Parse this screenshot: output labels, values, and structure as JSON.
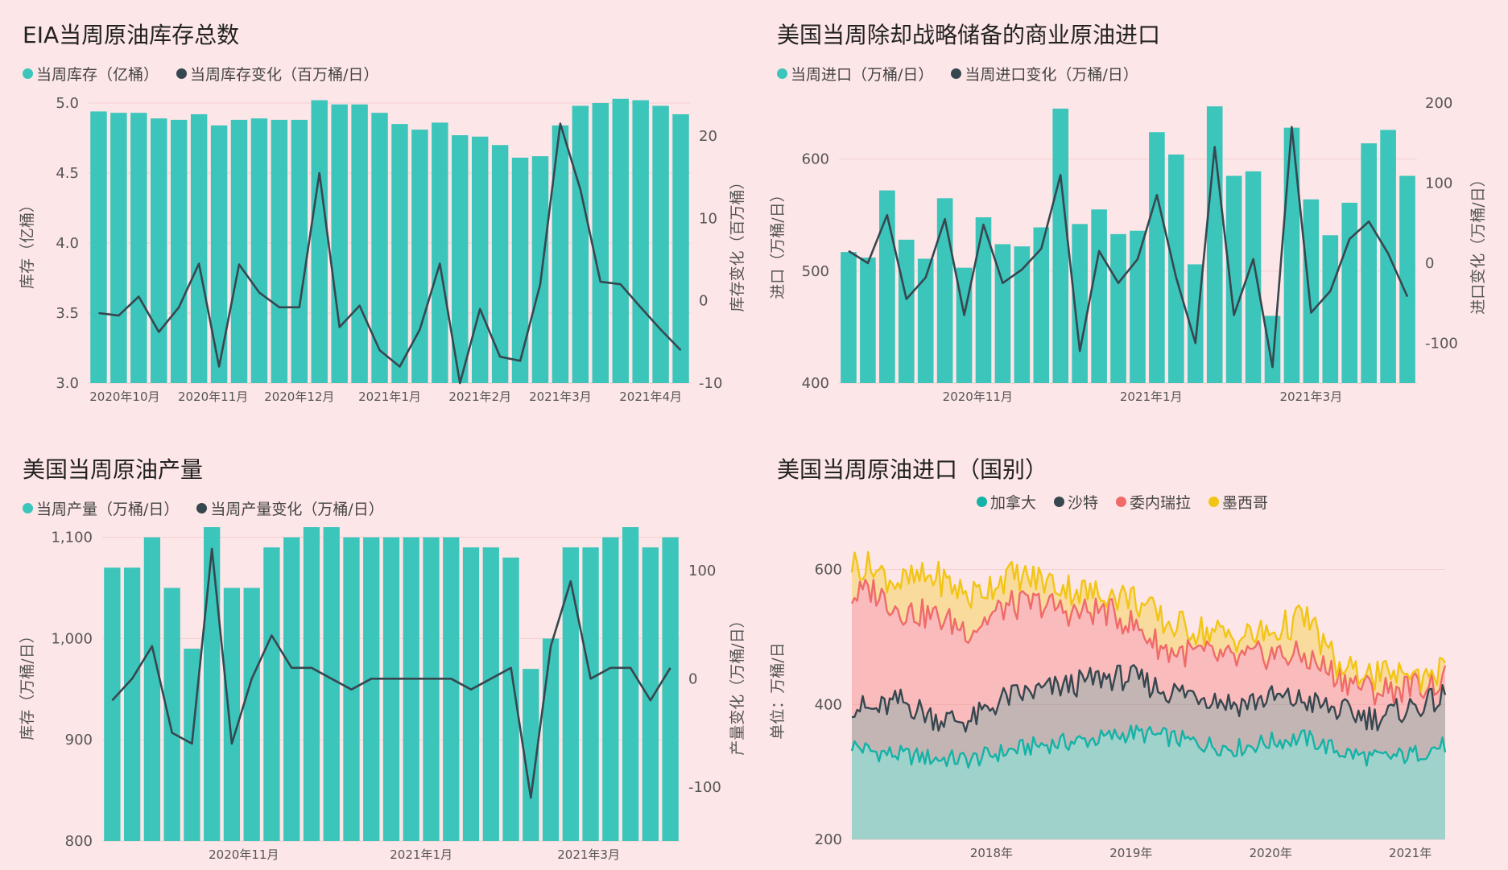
{
  "charts": [
    {
      "id": "p1",
      "title": "EIA当周原油库存总数",
      "legend": [
        {
          "label": "当周库存（亿桶）",
          "color": "#3cc5bb"
        },
        {
          "label": "当周库存变化（百万桶/日）",
          "color": "#37474f"
        }
      ]
    },
    {
      "id": "p2",
      "title": "美国当周除却战略储备的商业原油进口",
      "legend": [
        {
          "label": "当周进口（万桶/日）",
          "color": "#3cc5bb"
        },
        {
          "label": "当周进口变化（万桶/日）",
          "color": "#37474f"
        }
      ]
    },
    {
      "id": "p3",
      "title": "美国当周原油产量",
      "legend": [
        {
          "label": "当周产量（万桶/日）",
          "color": "#3cc5bb"
        },
        {
          "label": "当周产量变化（万桶/日）",
          "color": "#37474f"
        }
      ]
    },
    {
      "id": "p4",
      "title": "美国当周原油进口（国别）",
      "legend": [
        {
          "label": "加拿大",
          "color": "#14b3a6"
        },
        {
          "label": "沙特",
          "color": "#37474f"
        },
        {
          "label": "委内瑞拉",
          "color": "#f06a6a"
        },
        {
          "label": "墨西哥",
          "color": "#f2c515"
        }
      ]
    }
  ],
  "chart_data": [
    {
      "type": "bar",
      "id": "p1",
      "x_ticks": [
        "2020年10月",
        "2020年11月",
        "2020年12月",
        "2021年1月",
        "2021年2月",
        "2021年3月",
        "2021年4月"
      ],
      "x_tick_index": [
        1.3,
        5.7,
        10,
        14.5,
        19,
        23,
        27.5
      ],
      "ylabel": "库存（亿桶）",
      "y2label": "库存变化（百万桶）",
      "ylim": [
        3.0,
        5.0
      ],
      "y_ticks": [
        "3.0",
        "3.5",
        "4.0",
        "4.5",
        "5.0"
      ],
      "y2lim": [
        -10,
        24
      ],
      "y2_ticks": [
        "-10",
        "0",
        "10",
        "20"
      ],
      "series": [
        {
          "name": "当周库存",
          "kind": "bar",
          "values": [
            4.94,
            4.93,
            4.93,
            4.89,
            4.88,
            4.92,
            4.84,
            4.88,
            4.89,
            4.88,
            4.88,
            5.02,
            4.99,
            4.99,
            4.93,
            4.85,
            4.81,
            4.86,
            4.77,
            4.76,
            4.7,
            4.61,
            4.62,
            4.84,
            4.98,
            5.0,
            5.03,
            5.02,
            4.98,
            4.92
          ]
        },
        {
          "name": "当周库存变化",
          "kind": "line",
          "values": [
            -1.5,
            -1.8,
            0.5,
            -3.8,
            -0.8,
            4.5,
            -8,
            4.4,
            1,
            -0.8,
            -0.8,
            15.5,
            -3.2,
            -0.6,
            -6,
            -8,
            -3.5,
            4.5,
            -10,
            -1,
            -6.8,
            -7.3,
            2,
            21.5,
            13.5,
            2.3,
            2,
            -0.8,
            -3.5,
            -6
          ]
        }
      ]
    },
    {
      "type": "bar",
      "id": "p2",
      "x_ticks": [
        "2020年11月",
        "2021年1月",
        "2021年3月"
      ],
      "x_tick_index": [
        6.7,
        15.7,
        24
      ],
      "ylabel": "进口（万桶/日）",
      "y2label": "进口变化（万桶/日）",
      "ylim": [
        400,
        650
      ],
      "y_ticks": [
        "400",
        "500",
        "600"
      ],
      "y2lim": [
        -150,
        200
      ],
      "y2_ticks": [
        "-100",
        "0",
        "100",
        "200"
      ],
      "series": [
        {
          "name": "当周进口",
          "kind": "bar",
          "values": [
            517,
            512,
            572,
            528,
            511,
            565,
            503,
            548,
            524,
            522,
            539,
            645,
            542,
            555,
            533,
            536,
            624,
            604,
            506,
            647,
            585,
            589,
            460,
            628,
            564,
            532,
            561,
            614,
            626,
            585
          ]
        },
        {
          "name": "当周进口变化",
          "kind": "line",
          "values": [
            15,
            0,
            60,
            -45,
            -18,
            55,
            -65,
            48,
            -25,
            -8,
            18,
            110,
            -110,
            15,
            -25,
            5,
            85,
            -18,
            -100,
            145,
            -65,
            5,
            -130,
            170,
            -62,
            -35,
            30,
            52,
            12,
            -42
          ]
        }
      ]
    },
    {
      "type": "bar",
      "id": "p3",
      "x_ticks": [
        "2020年11月",
        "2021年1月",
        "2021年3月"
      ],
      "x_tick_index": [
        6.6,
        15.5,
        23.9
      ],
      "ylabel": "库存（万桶/日）",
      "y2label": "产量变化（万桶/日）",
      "ylim": [
        800,
        1110
      ],
      "y_ticks": [
        "800",
        "900",
        "1,000",
        "1,100"
      ],
      "y2lim": [
        -150,
        140
      ],
      "y2_ticks": [
        "-100",
        "0",
        "100"
      ],
      "series": [
        {
          "name": "当周产量",
          "kind": "bar",
          "values": [
            1070,
            1070,
            1100,
            1050,
            990,
            1110,
            1050,
            1050,
            1090,
            1100,
            1110,
            1110,
            1100,
            1100,
            1100,
            1100,
            1100,
            1100,
            1090,
            1090,
            1080,
            970,
            1000,
            1090,
            1090,
            1100,
            1110,
            1090,
            1100
          ]
        },
        {
          "name": "当周产量变化",
          "kind": "line",
          "values": [
            -20,
            0,
            30,
            -50,
            -60,
            120,
            -60,
            0,
            40,
            10,
            10,
            0,
            -10,
            0,
            0,
            0,
            0,
            0,
            -10,
            0,
            10,
            -110,
            30,
            90,
            0,
            10,
            10,
            -20,
            10
          ]
        }
      ]
    },
    {
      "type": "area",
      "id": "p4",
      "x_ticks": [
        "2018年",
        "2019年",
        "2020年",
        "2021年"
      ],
      "x_tick_pos": [
        2018.0,
        2019.0,
        2020.0,
        2021.0
      ],
      "ylabel": "单位：万桶/日",
      "ylim": [
        200,
        640
      ],
      "y_ticks": [
        "200",
        "400",
        "600"
      ],
      "xlim": [
        2017.0,
        2021.25
      ],
      "x_anchor": [
        2017.0,
        2017.15,
        2017.35,
        2017.6,
        2017.85,
        2018.1,
        2018.35,
        2018.6,
        2018.8,
        2019.0,
        2019.25,
        2019.5,
        2019.75,
        2020.0,
        2020.25,
        2020.5,
        2020.75,
        2021.0,
        2021.25
      ],
      "series": [
        {
          "name": "加拿大",
          "values": [
            340,
            330,
            325,
            320,
            318,
            330,
            340,
            345,
            350,
            358,
            352,
            342,
            335,
            345,
            350,
            330,
            320,
            325,
            340
          ]
        },
        {
          "name": "沙特",
          "values": [
            400,
            390,
            405,
            380,
            375,
            410,
            420,
            430,
            440,
            440,
            420,
            415,
            400,
            410,
            405,
            390,
            380,
            395,
            410
          ]
        },
        {
          "name": "委内瑞拉",
          "values": [
            560,
            570,
            540,
            530,
            510,
            545,
            550,
            535,
            540,
            520,
            480,
            475,
            465,
            475,
            470,
            440,
            420,
            425,
            435
          ]
        },
        {
          "name": "墨西哥",
          "values": [
            610,
            600,
            580,
            590,
            560,
            590,
            585,
            570,
            560,
            560,
            520,
            510,
            500,
            505,
            530,
            450,
            440,
            440,
            450
          ]
        }
      ]
    }
  ]
}
